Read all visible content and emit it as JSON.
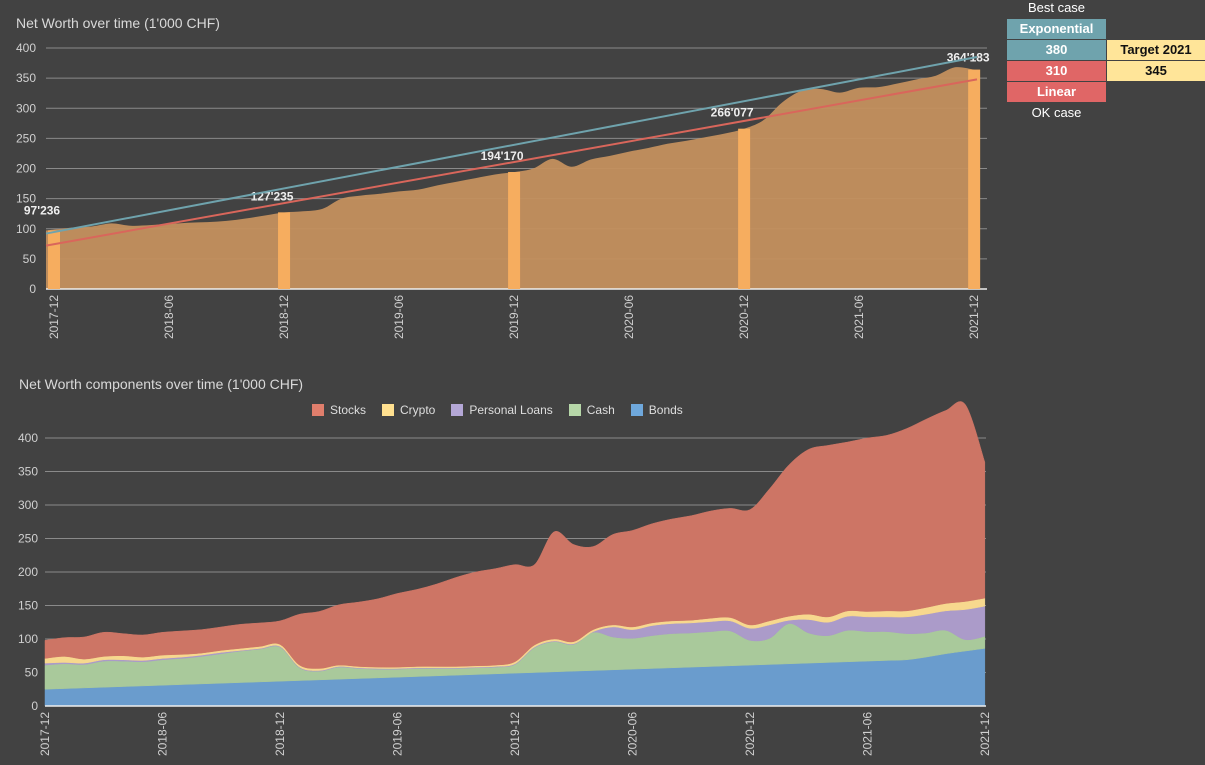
{
  "side_table": {
    "best_case_label": "Best case",
    "exponential_label": "Exponential",
    "exponential_value": "380",
    "linear_value": "310",
    "linear_label": "Linear",
    "ok_case_label": "OK case",
    "target_label": "Target 2021",
    "target_value": "345",
    "colors": {
      "exponential": "#6fa3ad",
      "linear": "#e06666",
      "target": "#ffe599"
    }
  },
  "chart_data": [
    {
      "type": "area",
      "title": "Net Worth over time (1'000 CHF)",
      "xlabel": "",
      "ylabel": "",
      "ylim": [
        0,
        400
      ],
      "yticks": [
        0,
        50,
        100,
        150,
        200,
        250,
        300,
        350,
        400
      ],
      "xticks": [
        "2017-12",
        "2018-06",
        "2018-12",
        "2019-06",
        "2019-12",
        "2020-06",
        "2020-12",
        "2021-06",
        "2021-12"
      ],
      "grid": true,
      "area_series": {
        "name": "Net Worth",
        "color": "#c4905e",
        "months_from_2017_12": [
          0,
          1,
          2,
          3,
          4,
          5,
          6,
          7,
          8,
          9,
          10,
          11,
          12,
          13,
          14,
          15,
          16,
          17,
          18,
          19,
          20,
          21,
          22,
          23,
          24,
          25,
          26,
          27,
          28,
          29,
          30,
          31,
          32,
          33,
          34,
          35,
          36,
          37,
          38,
          39,
          40,
          41,
          42,
          43,
          44,
          45,
          46,
          47,
          48
        ],
        "values": [
          97,
          102,
          104,
          109,
          105,
          106,
          108,
          110,
          111,
          113,
          117,
          122,
          127,
          129,
          133,
          150,
          155,
          158,
          162,
          165,
          172,
          178,
          184,
          190,
          194,
          200,
          216,
          203,
          215,
          221,
          228,
          234,
          241,
          246,
          252,
          258,
          266,
          280,
          310,
          329,
          332,
          326,
          334,
          335,
          341,
          348,
          354,
          368,
          364
        ]
      },
      "bar_series": {
        "name": "Year-end Net Worth",
        "color": "#f6ad5f",
        "categories": [
          "2017-12",
          "2018-12",
          "2019-12",
          "2020-12",
          "2021-12"
        ],
        "values": [
          97.236,
          127.235,
          194.17,
          266.077,
          364.183
        ],
        "labels": [
          "97'236",
          "127'235",
          "194'170",
          "266'077",
          "364'183"
        ]
      },
      "trendlines": [
        {
          "name": "Exponential",
          "color": "#6fa3ad",
          "start_value": 92,
          "end_value": 385
        },
        {
          "name": "Linear",
          "color": "#d9665b",
          "start_value": 72,
          "end_value": 348
        }
      ]
    },
    {
      "type": "area",
      "stacked": true,
      "title": "Net Worth components over time (1'000 CHF)",
      "xlabel": "",
      "ylabel": "",
      "ylim": [
        0,
        400
      ],
      "yticks": [
        0,
        50,
        100,
        150,
        200,
        250,
        300,
        350,
        400
      ],
      "xticks": [
        "2017-12",
        "2018-06",
        "2018-12",
        "2019-06",
        "2019-12",
        "2020-06",
        "2020-12",
        "2021-06",
        "2021-12"
      ],
      "grid": true,
      "legend_position": "top",
      "legend": [
        "Stocks",
        "Crypto",
        "Personal Loans",
        "Cash",
        "Bonds"
      ],
      "series": [
        {
          "name": "Bonds",
          "color": "#6a9ccd",
          "values": [
            25,
            26,
            27,
            28,
            29,
            30,
            31,
            32,
            33,
            34,
            35,
            36,
            37,
            38,
            39,
            40,
            41,
            42,
            43,
            44,
            45,
            46,
            47,
            48,
            49,
            50,
            51,
            52,
            53,
            54,
            55,
            56,
            57,
            58,
            59,
            60,
            61,
            62,
            63,
            64,
            65,
            66,
            67,
            68,
            69,
            73,
            78,
            82,
            86
          ]
        },
        {
          "name": "Cash",
          "color": "#a9c99b",
          "values": [
            36,
            37,
            35,
            39,
            38,
            36,
            38,
            39,
            41,
            44,
            47,
            49,
            51,
            19,
            13,
            18,
            15,
            13,
            12,
            12,
            11,
            10,
            10,
            10,
            13,
            37,
            45,
            40,
            57,
            49,
            46,
            49,
            51,
            51,
            52,
            52,
            37,
            39,
            60,
            45,
            40,
            47,
            44,
            43,
            39,
            36,
            35,
            17,
            18
          ]
        },
        {
          "name": "Personal Loans",
          "color": "#ab9bc9",
          "values": [
            3,
            2,
            2,
            2,
            2,
            2,
            2,
            2,
            2,
            2,
            1,
            1,
            1,
            1,
            1,
            1,
            1,
            1,
            1,
            1,
            1,
            1,
            1,
            1,
            1,
            1,
            1,
            1,
            1,
            15,
            13,
            15,
            15,
            15,
            15,
            15,
            18,
            20,
            5,
            20,
            20,
            21,
            22,
            22,
            25,
            28,
            29,
            45,
            45
          ]
        },
        {
          "name": "Crypto",
          "color": "#f7d88e",
          "values": [
            7,
            9,
            6,
            5,
            6,
            5,
            5,
            4,
            3,
            3,
            3,
            3,
            3,
            3,
            3,
            2,
            2,
            2,
            2,
            2,
            2,
            2,
            2,
            2,
            3,
            3,
            3,
            3,
            3,
            3,
            4,
            4,
            4,
            4,
            5,
            5,
            5,
            6,
            6,
            8,
            8,
            8,
            8,
            9,
            9,
            10,
            11,
            12,
            12
          ]
        },
        {
          "name": "Stocks",
          "color": "#cd7565",
          "values": [
            27,
            28,
            33,
            36,
            33,
            33,
            34,
            35,
            35,
            35,
            36,
            35,
            35,
            76,
            85,
            90,
            96,
            102,
            110,
            115,
            123,
            133,
            140,
            144,
            145,
            120,
            160,
            145,
            124,
            135,
            144,
            148,
            152,
            156,
            160,
            163,
            172,
            197,
            226,
            246,
            256,
            252,
            259,
            262,
            272,
            281,
            288,
            294,
            203
          ]
        }
      ]
    }
  ]
}
